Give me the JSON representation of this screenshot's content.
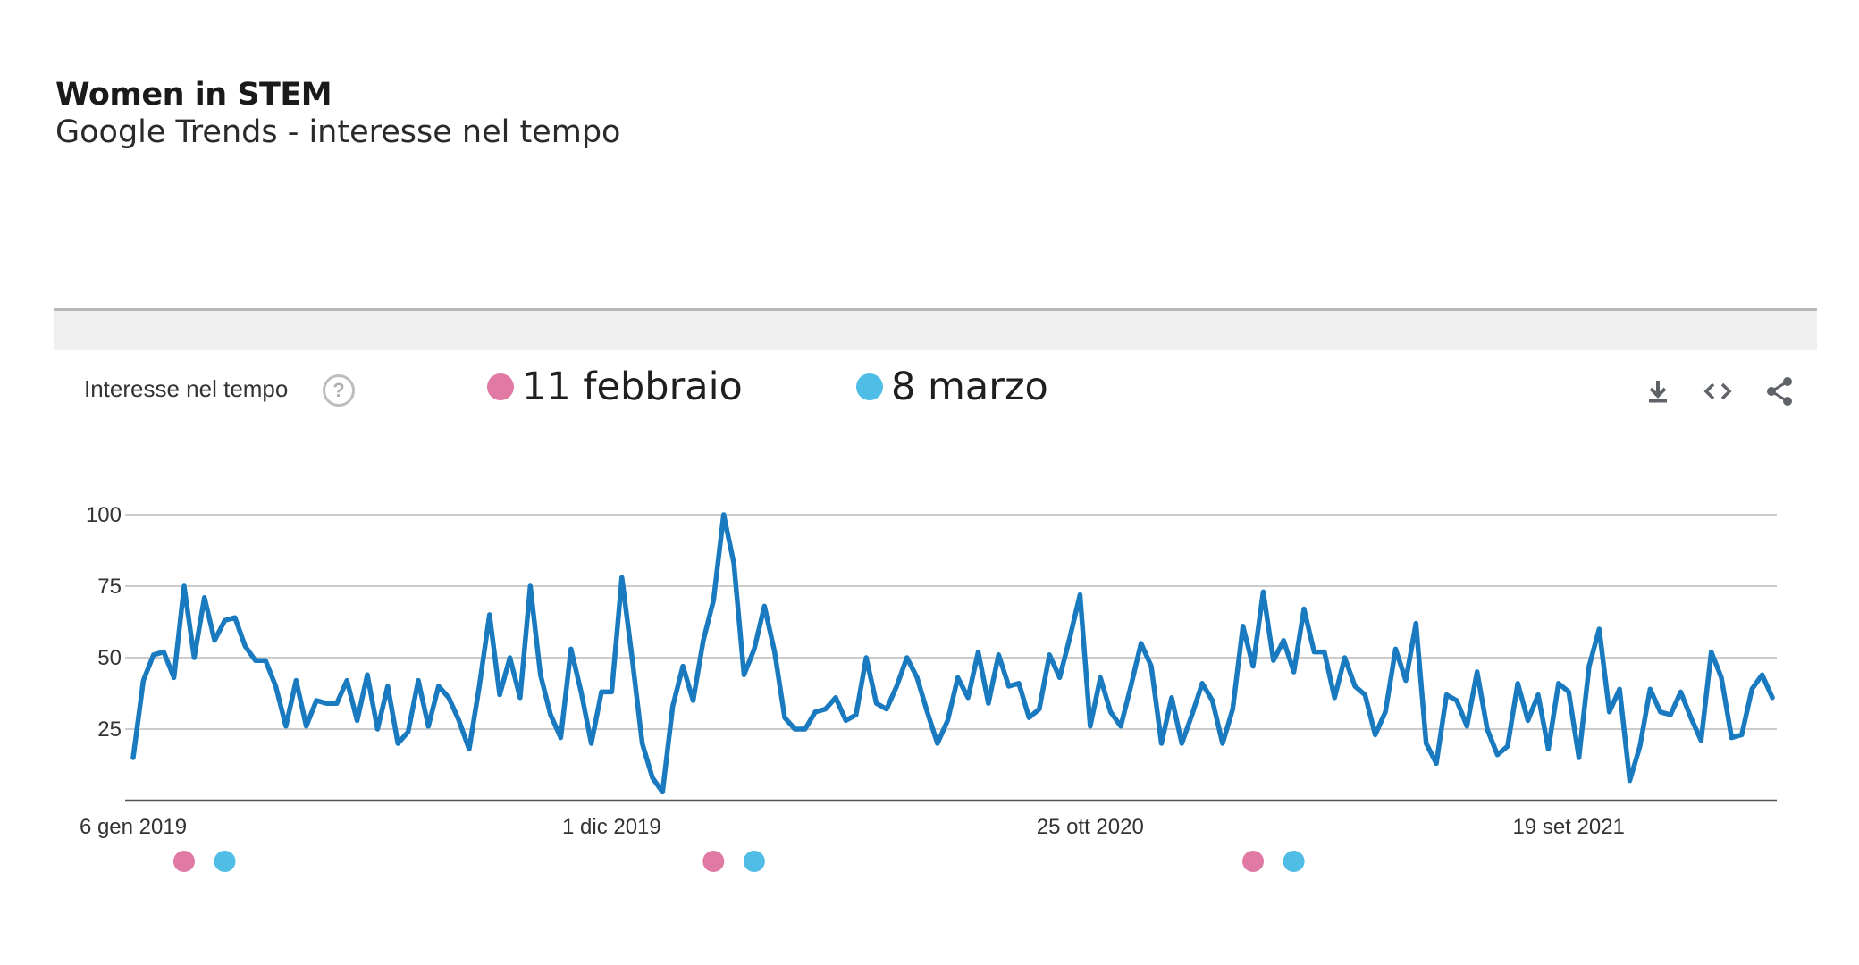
{
  "header": {
    "title": "Women in STEM",
    "subtitle": "Google Trends - interesse nel tempo"
  },
  "card": {
    "title": "Interesse nel tempo",
    "help_icon": "question-circle-icon",
    "toolbar": [
      "download-icon",
      "embed-code-icon",
      "share-icon"
    ]
  },
  "legend": [
    {
      "label": "11 febbraio",
      "color": "#e07aa5"
    },
    {
      "label": "8 marzo",
      "color": "#4fbde6"
    }
  ],
  "colors": {
    "line": "#1a7abf",
    "grid": "#cccccc",
    "axis": "#555555"
  },
  "chart_data": {
    "type": "line",
    "title": "",
    "xlabel": "",
    "ylabel": "",
    "ylim": [
      0,
      100
    ],
    "y_ticks": [
      25,
      50,
      75,
      100
    ],
    "x_ticks": [
      {
        "label": "6 gen 2019",
        "index": 0
      },
      {
        "label": "1 dic 2019",
        "index": 47
      },
      {
        "label": "25 ott 2020",
        "index": 94
      },
      {
        "label": "19 set 2021",
        "index": 141
      }
    ],
    "grid": true,
    "series": [
      {
        "values": [
          15,
          42,
          51,
          52,
          43,
          75,
          50,
          71,
          56,
          63,
          64,
          54,
          49,
          49,
          40,
          26,
          42,
          26,
          35,
          34,
          34,
          42,
          28,
          44,
          25,
          40,
          20,
          24,
          42,
          26,
          40,
          36,
          28,
          18,
          40,
          65,
          37,
          50,
          36,
          75,
          44,
          30,
          22,
          53,
          38,
          20,
          38,
          38,
          78,
          50,
          20,
          8,
          3,
          33,
          47,
          35,
          56,
          70,
          100,
          83,
          44,
          53,
          68,
          52,
          29,
          25,
          25,
          31,
          32,
          36,
          28,
          30,
          50,
          34,
          32,
          40,
          50,
          43,
          31,
          20,
          28,
          43,
          36,
          52,
          34,
          51,
          40,
          41,
          29,
          32,
          51,
          43,
          57,
          72,
          26,
          43,
          31,
          26,
          40,
          55,
          47,
          20,
          36,
          20,
          30,
          41,
          35,
          20,
          32,
          61,
          47,
          73,
          49,
          56,
          45,
          67,
          52,
          52,
          36,
          50,
          40,
          37,
          23,
          31,
          53,
          42,
          62,
          20,
          13,
          37,
          35,
          26,
          45,
          25,
          16,
          19,
          41,
          28,
          37,
          18,
          41,
          38,
          15,
          47,
          60,
          31,
          39,
          7,
          19,
          39,
          31,
          30,
          38,
          29,
          21,
          52,
          43,
          22,
          23,
          39,
          44,
          36
        ]
      }
    ],
    "event_markers": [
      {
        "label": "11 febbraio",
        "color": "#e07aa5",
        "index": 5
      },
      {
        "label": "8 marzo",
        "color": "#4fbde6",
        "index": 9
      },
      {
        "label": "11 febbraio",
        "color": "#e07aa5",
        "index": 57
      },
      {
        "label": "8 marzo",
        "color": "#4fbde6",
        "index": 61
      },
      {
        "label": "11 febbraio",
        "color": "#e07aa5",
        "index": 110
      },
      {
        "label": "8 marzo",
        "color": "#4fbde6",
        "index": 114
      }
    ]
  }
}
